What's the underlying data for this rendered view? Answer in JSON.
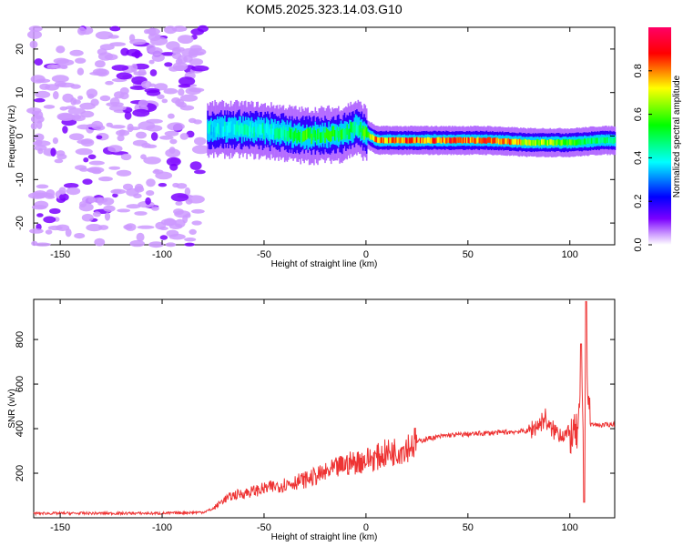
{
  "title": "KOM5.2025.323.14.03.G10",
  "chart_data": [
    {
      "type": "heatmap",
      "xlabel": "Height of straight line (km)",
      "ylabel": "Frequency (Hz)",
      "xlim": [
        -163,
        122
      ],
      "ylim": [
        -25,
        25
      ],
      "xticks": [
        -150,
        -100,
        -50,
        0,
        50,
        100
      ],
      "yticks": [
        -20,
        -10,
        0,
        10,
        20
      ],
      "colorbar": {
        "label": "Normalized spectral amplitude",
        "range": [
          0,
          1
        ],
        "ticks": [
          "0.0",
          "0.2",
          "0.4",
          "0.6",
          "0.8"
        ],
        "colors": [
          "#ffffff",
          "#cc99ff",
          "#7a00ff",
          "#0000ff",
          "#00ffff",
          "#00ff00",
          "#ffff00",
          "#ff0000",
          "#ff0066"
        ]
      },
      "signal_track": [
        {
          "x": -78,
          "f": 1.5,
          "amp": 0.4
        },
        {
          "x": -60,
          "f": 1.5,
          "amp": 0.45
        },
        {
          "x": -45,
          "f": 1.0,
          "amp": 0.45
        },
        {
          "x": -30,
          "f": 0.0,
          "amp": 0.6
        },
        {
          "x": -12,
          "f": 0.5,
          "amp": 0.55
        },
        {
          "x": -5,
          "f": 2.0,
          "amp": 0.5
        },
        {
          "x": 5,
          "f": -1.0,
          "amp": 0.85
        },
        {
          "x": 30,
          "f": -1.0,
          "amp": 0.9
        },
        {
          "x": 60,
          "f": -1.0,
          "amp": 0.9
        },
        {
          "x": 80,
          "f": -1.5,
          "amp": 0.75
        },
        {
          "x": 100,
          "f": -1.5,
          "amp": 0.6
        },
        {
          "x": 115,
          "f": -1.0,
          "amp": 0.5
        },
        {
          "x": 122,
          "f": -1.0,
          "amp": 0.5
        }
      ]
    },
    {
      "type": "line",
      "xlabel": "Height of straight line (km)",
      "ylabel": "SNR (v/v)",
      "xlim": [
        -163,
        122
      ],
      "ylim": [
        0,
        980
      ],
      "xticks": [
        -150,
        -100,
        -50,
        0,
        50,
        100
      ],
      "yticks": [
        200,
        400,
        600,
        800
      ],
      "color": "#ee3333",
      "series": [
        {
          "x": [
            -163,
            -140,
            -120,
            -100,
            -80,
            -75,
            -70,
            -65,
            -60,
            -55,
            -50,
            -45,
            -40,
            -35,
            -30,
            -25,
            -20,
            -15,
            -10,
            -5,
            0,
            5,
            10,
            15,
            20,
            25,
            30,
            40,
            50,
            60,
            70,
            80,
            85,
            88,
            90,
            95,
            100,
            104,
            106,
            107,
            108,
            110,
            115,
            122
          ],
          "y": [
            20,
            20,
            20,
            20,
            25,
            40,
            80,
            100,
            110,
            120,
            130,
            140,
            150,
            160,
            170,
            185,
            200,
            220,
            240,
            250,
            260,
            270,
            290,
            300,
            320,
            340,
            355,
            370,
            375,
            380,
            385,
            390,
            420,
            450,
            400,
            380,
            370,
            380,
            600,
            260,
            680,
            420,
            415,
            420
          ]
        }
      ]
    }
  ]
}
